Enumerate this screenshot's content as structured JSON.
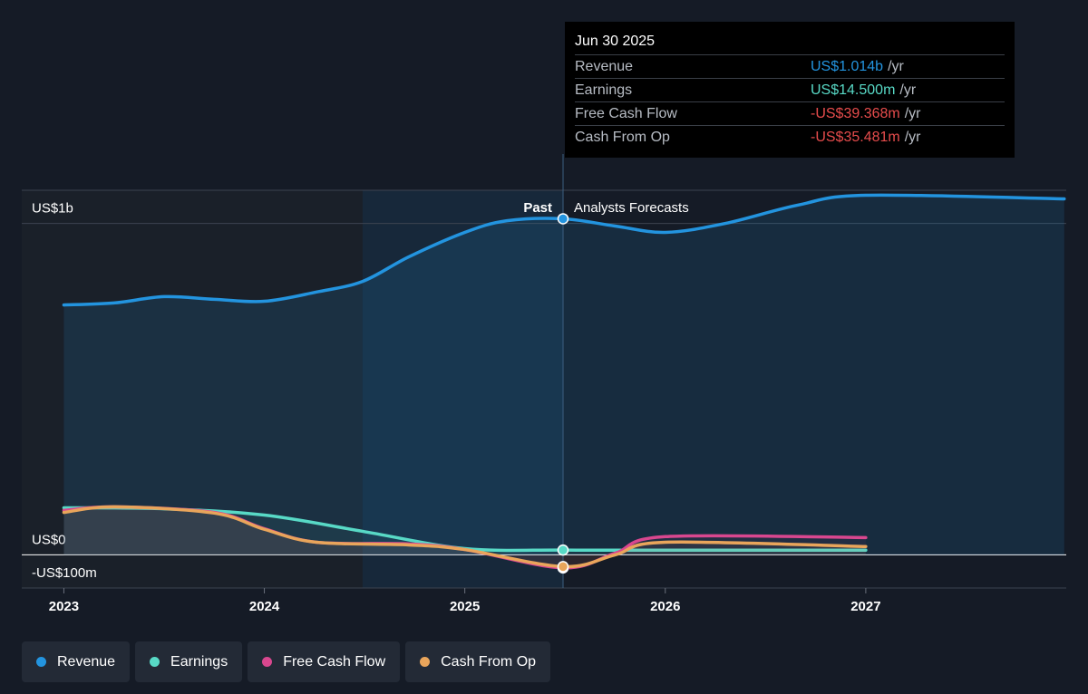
{
  "chart_data": {
    "type": "line",
    "xlim": [
      2022.79,
      2028
    ],
    "xticks": [
      2023,
      2024,
      2025,
      2026,
      2027
    ],
    "ylim": [
      -100,
      1100
    ],
    "yticks": [
      {
        "value": -100,
        "label": "-US$100m"
      },
      {
        "value": 0,
        "label": "US$0"
      },
      {
        "value": 1000,
        "label": "US$1b"
      }
    ],
    "forecast_start": 2025.49,
    "past_label": "Past",
    "forecast_label": "Analysts Forecasts",
    "series": [
      {
        "name": "Revenue",
        "color": "#2394df",
        "x": [
          2023,
          2023.25,
          2023.5,
          2023.75,
          2024,
          2024.26,
          2024.49,
          2024.72,
          2025,
          2025.21,
          2025.49,
          2025.75,
          2026,
          2026.3,
          2026.66,
          2027,
          2027.99
        ],
        "values": [
          754,
          760,
          779,
          771,
          765,
          793,
          825,
          899,
          973,
          1008,
          1014,
          992,
          973,
          1000,
          1055,
          1085,
          1074
        ]
      },
      {
        "name": "Earnings",
        "color": "#58d9c6",
        "x": [
          2023,
          2023.5,
          2024,
          2024.49,
          2025,
          2025.49,
          2026,
          2027
        ],
        "values": [
          142,
          139,
          120,
          71,
          19,
          14.5,
          14,
          14
        ]
      },
      {
        "name": "Free Cash Flow",
        "color": "#d9478f",
        "x": [
          2023,
          2023.25,
          2023.75,
          2024,
          2024.26,
          2024.72,
          2025,
          2025.49,
          2025.75,
          2026,
          2027
        ],
        "values": [
          134,
          145,
          128,
          79,
          38,
          33,
          16,
          -39.368,
          5,
          55,
          52
        ]
      },
      {
        "name": "Cash From Op",
        "color": "#e9a55b",
        "x": [
          2023,
          2023.25,
          2023.75,
          2024,
          2024.26,
          2024.72,
          2025,
          2025.49,
          2025.75,
          2026,
          2027
        ],
        "values": [
          128,
          145,
          126,
          77,
          38,
          30,
          16,
          -35.481,
          0,
          38,
          25
        ]
      }
    ],
    "tooltip": {
      "title": "Jun 30 2025",
      "rows": [
        {
          "name": "Revenue",
          "value": "US$1.014b",
          "unit": "/yr",
          "color": "#2394df"
        },
        {
          "name": "Earnings",
          "value": "US$14.500m",
          "unit": "/yr",
          "color": "#58d9c6"
        },
        {
          "name": "Free Cash Flow",
          "value": "-US$39.368m",
          "unit": "/yr",
          "color": "#e64c4c"
        },
        {
          "name": "Cash From Op",
          "value": "-US$35.481m",
          "unit": "/yr",
          "color": "#e64c4c"
        }
      ]
    }
  }
}
